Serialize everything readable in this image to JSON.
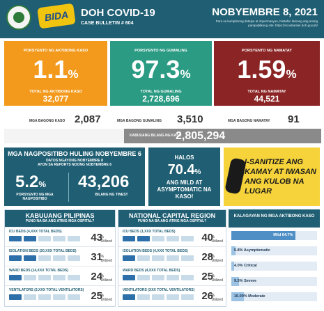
{
  "header": {
    "logo_text": "BIDA",
    "title": "DOH COVID-19",
    "bulletin": "CASE BULLETIN # 604",
    "date": "NOBYEMBRE 8, 2021",
    "note": "Para sa kumpletong detalye at impormasyon, bisitahin lamang ang aming pampublikong site: https://ncovtracker.doh.gov.ph/"
  },
  "active": {
    "label": "PORSYENTO NG AKTIBONG KASO",
    "pct": "1.1",
    "pct_sign": "%",
    "total_label": "TOTAL NG AKTIBONG KASO",
    "total": "32,077",
    "new_label": "MGA BAGONG KASO",
    "new_value": "2,087"
  },
  "recovered": {
    "label": "PORSYENTO NG GUMALING",
    "pct": "97.3",
    "pct_sign": "%",
    "total_label": "TOTAL NG GUMALING",
    "total": "2,728,696",
    "new_label": "MGA BAGONG GUMALING",
    "new_value": "3,510"
  },
  "deaths": {
    "label": "PORSYENTO NG NAMATAY",
    "pct": "1.59",
    "pct_sign": "%",
    "total_label": "TOTAL NG NAMATAY",
    "total": "44,521",
    "new_label": "MGA BAGONG NAMATAY",
    "new_value": "91"
  },
  "total_cases": {
    "label": "KABUUANG BILANG NG KASO",
    "value": "2,805,294"
  },
  "positivity": {
    "title": "MGA NAGPOSITIBO HULING NOBYEMBRE 6",
    "subtitle1": "DATOS NGAYONG NOBYEMBRE 8",
    "subtitle2": "AYON SA REPORTS NOONG NOBYEMBRE 6",
    "rate": "5.2",
    "rate_sign": "%",
    "rate_label": "PORSYENTO NG MGA NAGPOSITIBO",
    "tested": "43,206",
    "tested_label": "BILANG NG TINEST"
  },
  "mild": {
    "line1": "HALOS",
    "pct": "70.4",
    "pct_sign": "%",
    "line2": "ANG MILD AT ASYMPTOMATIC NA KASO!"
  },
  "campaign": {
    "text": "I-SANITIZE ANG KAMAY AT IWASAN ANG KULOB NA LUGAR"
  },
  "ph_capacity": {
    "title": "KABUUANG PILIPINAS",
    "subtitle": "PUNO NA BA ANG ATING MGA OSPITAL?",
    "items": [
      {
        "label": "ICU BEDS (4,XXX TOTAL BEDS)",
        "value": "43",
        "unit_pct": "%",
        "unit": "Utilized",
        "level": 0.43
      },
      {
        "label": "ISOLATION BEDS (20,XXX TOTAL BEDS)",
        "value": "31",
        "unit_pct": "%",
        "unit": "Utilized",
        "level": 0.31
      },
      {
        "label": "WARD BEDS (14,XXX TOTAL BEDS)",
        "value": "24",
        "unit_pct": "%",
        "unit": "Utilized",
        "level": 0.24
      },
      {
        "label": "VENTILATORS (3,XXX TOTAL VENTILATORS)",
        "value": "25",
        "unit_pct": "%",
        "unit": "Utilized",
        "level": 0.25
      }
    ]
  },
  "ncr_capacity": {
    "title": "NATIONAL CAPITAL REGION",
    "subtitle": "PUNO NA BA ANG ATING MGA OSPITAL?",
    "items": [
      {
        "label": "ICU BEDS (1,XXX TOTAL BEDS)",
        "value": "40",
        "unit_pct": "%",
        "unit": "Utilized",
        "level": 0.4
      },
      {
        "label": "ISOLATION BEDS (4,XXX TOTAL BEDS)",
        "value": "28",
        "unit_pct": "%",
        "unit": "Utilized",
        "level": 0.28
      },
      {
        "label": "WARD BEDS (4,XXX TOTAL BEDS)",
        "value": "25",
        "unit_pct": "%",
        "unit": "Utilized",
        "level": 0.25
      },
      {
        "label": "VENTILATORS (XXX TOTAL VENTILATORS)",
        "value": "26",
        "unit_pct": "%",
        "unit": "Utilized",
        "level": 0.26
      }
    ]
  },
  "severity": {
    "title": "KALAGAYAN NG MGA AKTIBONG KASO",
    "items": [
      {
        "label": "Mild 64.7%",
        "value": 64.7,
        "style": "mild"
      },
      {
        "label": "5.8% Asymptomatic",
        "value": 5.8,
        "style": "other"
      },
      {
        "label": "4.0% Critical",
        "value": 4.0,
        "style": "other"
      },
      {
        "label": "9.5% Severe",
        "value": 9.5,
        "style": "other"
      },
      {
        "label": "16.09% Moderate",
        "value": 16.09,
        "style": "other"
      }
    ]
  },
  "colors": {
    "header": "#1f5e73",
    "active": "#f39a1d",
    "recovered": "#2b9b83",
    "deaths": "#8b2424",
    "campaign": "#f6d33b",
    "bar": "#4f8fc6"
  }
}
